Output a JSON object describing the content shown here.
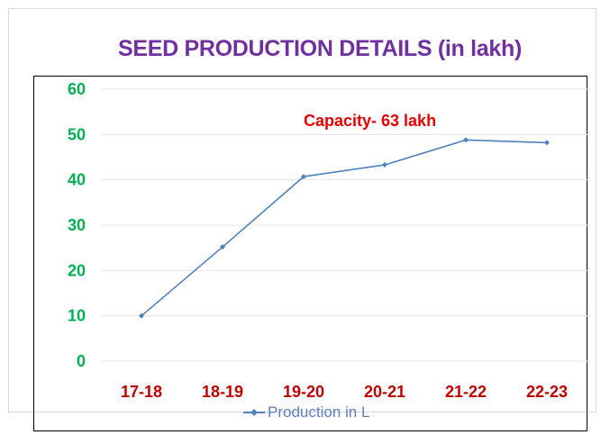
{
  "chart_data": {
    "type": "line",
    "title": "SEED PRODUCTION DETAILS (in lakh)",
    "annotation": "Capacity- 63 lakh",
    "categories": [
      "17-18",
      "18-19",
      "19-20",
      "20-21",
      "21-22",
      "22-23"
    ],
    "series": [
      {
        "name": "Production in L",
        "values": [
          10,
          25.2,
          40.7,
          43.3,
          48.8,
          48.2
        ]
      }
    ],
    "yticks": [
      "0",
      "10",
      "20",
      "30",
      "40",
      "50",
      "60"
    ],
    "ylim": [
      0,
      60
    ],
    "grid": true,
    "legend_position": "bottom",
    "colors": {
      "title": "#7030a0",
      "series": "#4f81bd",
      "ytick": "#00b050",
      "xtick": "#c00000",
      "annotation": "#e60000"
    }
  }
}
